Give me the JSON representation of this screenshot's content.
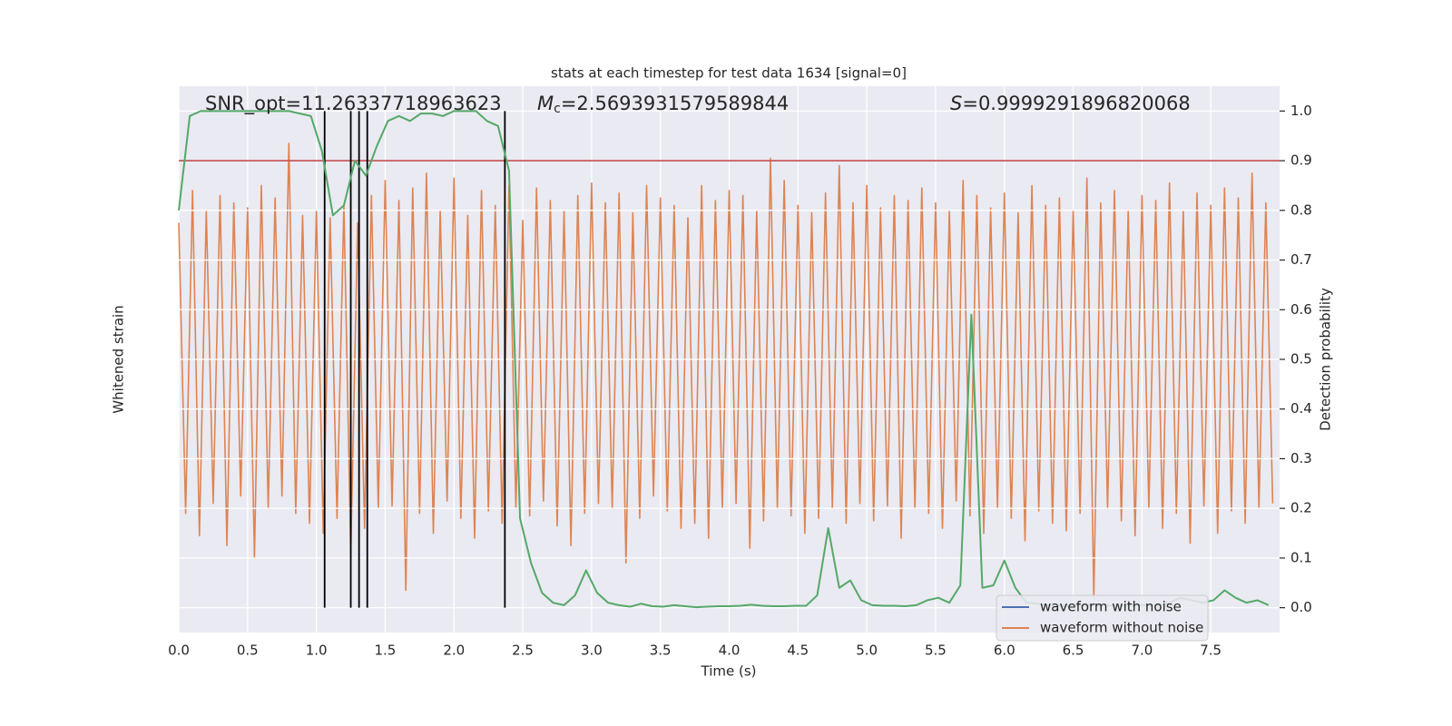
{
  "chart_data": {
    "type": "line",
    "title": "stats at each timestep for test data 1634 [signal=0]",
    "annotations": {
      "snr": "SNR_opt=11.26337718963623",
      "mc": {
        "symbol": "M",
        "subscript": "c",
        "text": "=2.5693931579589844"
      },
      "s": {
        "symbol": "S",
        "text": "=0.9999291896820068"
      }
    },
    "xlabel": "Time (s)",
    "ylabel": "Whitened strain",
    "y2label": "Detection probability",
    "xlim": [
      0,
      8
    ],
    "xticks": [
      {
        "value": 0,
        "label": "0.0"
      },
      0.5,
      {
        "value": 1,
        "label": "1.0"
      },
      1.5,
      {
        "value": 2,
        "label": "2.0"
      },
      2.5,
      {
        "value": 3,
        "label": "3.0"
      },
      3.5,
      {
        "value": 4,
        "label": "4.0"
      },
      4.5,
      {
        "value": 5,
        "label": "5.0"
      },
      5.5,
      {
        "value": 6,
        "label": "6.0"
      },
      6.5,
      {
        "value": 7,
        "label": "7.0"
      },
      7.5
    ],
    "ylim": [
      -1.1,
      1.1
    ],
    "y2lim": [
      -0.05,
      1.05
    ],
    "y2ticks": [
      {
        "value": 0,
        "label": "0.0"
      },
      0.1,
      0.2,
      0.3,
      0.4,
      0.5,
      0.6,
      0.7,
      0.8,
      0.9,
      {
        "value": 1,
        "label": "1.0"
      }
    ],
    "grid": true,
    "legend": "lower right",
    "legend_entries": [
      {
        "name": "waveform with noise",
        "color": "#4c72b0"
      },
      {
        "name": "waveform without noise",
        "color": "#dd8452"
      }
    ],
    "threshold": 0.9,
    "threshold_color": "#c44e52",
    "vlines": [
      1.06,
      1.25,
      1.31,
      1.37,
      2.37
    ],
    "vline_color": "#000000",
    "series": [
      {
        "color": "#dd8452",
        "x": [
          0,
          0.05,
          0.1,
          0.15,
          0.2,
          0.25,
          0.3,
          0.35,
          0.4,
          0.45,
          0.5,
          0.55,
          0.6,
          0.65,
          0.7,
          0.75,
          0.8,
          0.85,
          0.9,
          0.95,
          1,
          1.05,
          1.1,
          1.15,
          1.2,
          1.25,
          1.3,
          1.35,
          1.4,
          1.45,
          1.5,
          1.55,
          1.6,
          1.65,
          1.7,
          1.75,
          1.8,
          1.85,
          1.9,
          1.95,
          2,
          2.05,
          2.1,
          2.15,
          2.2,
          2.25,
          2.3,
          2.35,
          2.4,
          2.45,
          2.5,
          2.55,
          2.6,
          2.65,
          2.7,
          2.75,
          2.8,
          2.85,
          2.9,
          2.95,
          3,
          3.05,
          3.1,
          3.15,
          3.2,
          3.25,
          3.3,
          3.35,
          3.4,
          3.45,
          3.5,
          3.55,
          3.6,
          3.65,
          3.7,
          3.75,
          3.8,
          3.85,
          3.9,
          3.95,
          4,
          4.05,
          4.1,
          4.15,
          4.2,
          4.25,
          4.3,
          4.35,
          4.4,
          4.45,
          4.5,
          4.55,
          4.6,
          4.65,
          4.7,
          4.75,
          4.8,
          4.85,
          4.9,
          4.95,
          5,
          5.05,
          5.1,
          5.15,
          5.2,
          5.25,
          5.3,
          5.35,
          5.4,
          5.45,
          5.5,
          5.55,
          5.6,
          5.65,
          5.7,
          5.75,
          5.8,
          5.85,
          5.9,
          5.95,
          6,
          6.05,
          6.1,
          6.15,
          6.2,
          6.25,
          6.3,
          6.35,
          6.4,
          6.45,
          6.5,
          6.55,
          6.6,
          6.65,
          6.7,
          6.75,
          6.8,
          6.85,
          6.9,
          6.95,
          7,
          7.05,
          7.1,
          7.15,
          7.2,
          7.25,
          7.3,
          7.35,
          7.4,
          7.45,
          7.5,
          7.55,
          7.6,
          7.65,
          7.7,
          7.75,
          7.8,
          7.85,
          7.9,
          7.95
        ],
        "values": [
          0.55,
          -0.62,
          0.68,
          -0.71,
          0.6,
          -0.58,
          0.66,
          -0.75,
          0.63,
          -0.55,
          0.61,
          -0.8,
          0.7,
          -0.6,
          0.65,
          -0.55,
          0.87,
          -0.62,
          0.58,
          -0.66,
          0.6,
          -0.7,
          0.57,
          -0.64,
          0.62,
          -0.78,
          0.55,
          -0.68,
          0.66,
          -0.6,
          0.72,
          -0.59,
          0.64,
          -0.93,
          0.69,
          -0.62,
          0.75,
          -0.7,
          0.6,
          -0.57,
          0.73,
          -0.64,
          0.58,
          -0.72,
          0.68,
          -0.61,
          0.62,
          -0.66,
          0.7,
          -0.6,
          0.56,
          -0.63,
          0.69,
          -0.57,
          0.64,
          -0.67,
          0.6,
          -0.75,
          0.66,
          -0.62,
          0.71,
          -0.58,
          0.63,
          -0.6,
          0.67,
          -0.82,
          0.59,
          -0.64,
          0.7,
          -0.55,
          0.65,
          -0.61,
          0.62,
          -0.68,
          0.57,
          -0.66,
          0.7,
          -0.72,
          0.64,
          -0.6,
          0.68,
          -0.58,
          0.66,
          -0.76,
          0.6,
          -0.65,
          0.81,
          -0.6,
          0.72,
          -0.63,
          0.62,
          -0.7,
          0.59,
          -0.64,
          0.67,
          -0.6,
          0.78,
          -0.66,
          0.63,
          -0.58,
          0.7,
          -0.65,
          0.61,
          -0.59,
          0.66,
          -0.72,
          0.64,
          -0.6,
          0.69,
          -0.62,
          0.63,
          -0.68,
          0.6,
          -0.57,
          0.72,
          -0.63,
          0.66,
          -0.7,
          0.61,
          -0.6,
          0.67,
          -0.64,
          0.59,
          -0.73,
          0.7,
          -0.61,
          0.62,
          -0.66,
          0.65,
          -0.69,
          0.6,
          -0.62,
          0.73,
          -0.96,
          0.63,
          -0.6,
          0.68,
          -0.65,
          0.6,
          -0.71,
          0.66,
          -0.6,
          0.64,
          -0.68,
          0.71,
          -0.62,
          0.6,
          -0.74,
          0.67,
          -0.59,
          0.62,
          -0.7,
          0.69,
          -0.61,
          0.65,
          -0.66,
          0.75,
          -0.6,
          0.63,
          -0.58
        ]
      },
      {
        "color": "#55a868",
        "axis": "y2",
        "x": [
          0,
          0.08,
          0.16,
          0.24,
          0.32,
          0.4,
          0.48,
          0.56,
          0.64,
          0.72,
          0.8,
          0.88,
          0.96,
          1.04,
          1.12,
          1.2,
          1.28,
          1.36,
          1.44,
          1.52,
          1.6,
          1.68,
          1.76,
          1.84,
          1.92,
          2,
          2.08,
          2.16,
          2.24,
          2.32,
          2.4,
          2.48,
          2.56,
          2.64,
          2.72,
          2.8,
          2.88,
          2.96,
          3.04,
          3.12,
          3.2,
          3.28,
          3.36,
          3.44,
          3.52,
          3.6,
          3.68,
          3.76,
          3.84,
          3.92,
          4,
          4.08,
          4.16,
          4.24,
          4.32,
          4.4,
          4.48,
          4.56,
          4.64,
          4.72,
          4.8,
          4.88,
          4.96,
          5.04,
          5.12,
          5.2,
          5.28,
          5.36,
          5.44,
          5.52,
          5.6,
          5.68,
          5.76,
          5.84,
          5.92,
          6,
          6.08,
          6.16,
          6.24,
          6.32,
          6.4,
          6.48,
          6.56,
          6.64,
          6.72,
          6.8,
          6.88,
          6.96,
          7.04,
          7.12,
          7.2,
          7.28,
          7.36,
          7.44,
          7.52,
          7.6,
          7.68,
          7.76,
          7.84,
          7.92
        ],
        "values": [
          0.8,
          0.99,
          1,
          1,
          1,
          1,
          1,
          1,
          1,
          1,
          1,
          0.995,
          0.99,
          0.92,
          0.79,
          0.81,
          0.9,
          0.87,
          0.93,
          0.98,
          0.99,
          0.98,
          0.995,
          0.995,
          0.99,
          1,
          1,
          1,
          0.98,
          0.97,
          0.88,
          0.18,
          0.09,
          0.03,
          0.01,
          0.005,
          0.025,
          0.075,
          0.03,
          0.01,
          0.005,
          0.002,
          0.008,
          0.003,
          0.002,
          0.005,
          0.003,
          0.001,
          0.002,
          0.003,
          0.003,
          0.004,
          0.006,
          0.004,
          0.003,
          0.003,
          0.004,
          0.004,
          0.025,
          0.16,
          0.04,
          0.055,
          0.015,
          0.005,
          0.004,
          0.004,
          0.003,
          0.005,
          0.015,
          0.02,
          0.01,
          0.045,
          0.59,
          0.04,
          0.045,
          0.095,
          0.04,
          0.01,
          0.008,
          0.005,
          0.004,
          0.004,
          0.005,
          0.005,
          0.005,
          0.004,
          0.004,
          0.005,
          0.005,
          0.005,
          0.01,
          0.02,
          0.015,
          0.01,
          0.015,
          0.035,
          0.02,
          0.01,
          0.015,
          0.005
        ]
      }
    ]
  }
}
